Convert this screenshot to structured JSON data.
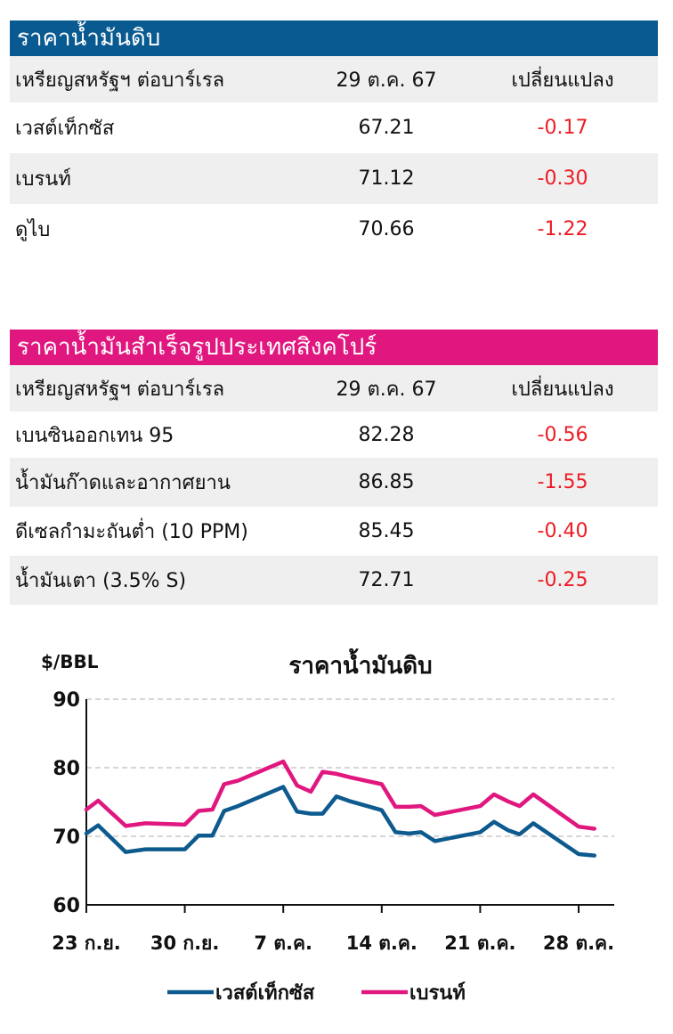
{
  "crude_table": {
    "title": "ราคาน้ำมันดิบ",
    "title_color": "#0a5a92",
    "header": {
      "label": "เหรียญสหรัฐฯ ต่อบาร์เรล",
      "date": "29 ต.ค. 67",
      "change": "เปลี่ยนแปลง"
    },
    "rows": [
      {
        "name": "เวสต์เท็กซัส",
        "price": "67.21",
        "change": "-0.17"
      },
      {
        "name": "เบรนท์",
        "price": "71.12",
        "change": "-0.30"
      },
      {
        "name": "ดูไบ",
        "price": "70.66",
        "change": "-1.22"
      }
    ]
  },
  "refined_table": {
    "title": "ราคาน้ำมันสำเร็จรูปประเทศสิงคโปร์",
    "title_color": "#e0177f",
    "header": {
      "label": "เหรียญสหรัฐฯ ต่อบาร์เรล",
      "date": "29 ต.ค. 67",
      "change": "เปลี่ยนแปลง"
    },
    "rows": [
      {
        "name": "เบนซินออกเทน 95",
        "price": "82.28",
        "change": "-0.56"
      },
      {
        "name": "น้ำมันก๊าดและอากาศยาน",
        "price": "86.85",
        "change": "-1.55"
      },
      {
        "name": "ดีเซลกำมะถันต่ำ (10 PPM)",
        "price": "85.45",
        "change": "-0.40"
      },
      {
        "name": "น้ำมันเตา (3.5% S)",
        "price": "72.71",
        "change": "-0.25"
      }
    ]
  },
  "chart_data": {
    "type": "line",
    "title": "ราคาน้ำมันดิบ",
    "ylabel": "$/BBL",
    "ylim": [
      60,
      90
    ],
    "yticks": [
      60,
      70,
      80,
      90
    ],
    "grid": "horizontal dashed",
    "legend_position": "bottom",
    "x_index_range": [
      0,
      25
    ],
    "xticks": [
      {
        "index": 0,
        "label": "23 ก.ย."
      },
      {
        "index": 5,
        "label": "30 ก.ย."
      },
      {
        "index": 10,
        "label": "7 ต.ค."
      },
      {
        "index": 15,
        "label": "14 ต.ค."
      },
      {
        "index": 20,
        "label": "21 ต.ค."
      },
      {
        "index": 25,
        "label": "28 ต.ค."
      }
    ],
    "series": [
      {
        "name": "เวสต์เท็กซัส",
        "color": "#0d5a8e",
        "points": [
          [
            0,
            70.4
          ],
          [
            0.6,
            71.6
          ],
          [
            2,
            67.7
          ],
          [
            3,
            68.1
          ],
          [
            4,
            68.1
          ],
          [
            5,
            68.1
          ],
          [
            5.7,
            70.1
          ],
          [
            6.4,
            70.1
          ],
          [
            7,
            73.7
          ],
          [
            7.7,
            74.4
          ],
          [
            10,
            77.2
          ],
          [
            10.7,
            73.6
          ],
          [
            11.4,
            73.3
          ],
          [
            12,
            73.3
          ],
          [
            12.7,
            75.8
          ],
          [
            13.4,
            75.1
          ],
          [
            15,
            73.8
          ],
          [
            15.7,
            70.6
          ],
          [
            16.4,
            70.4
          ],
          [
            17,
            70.6
          ],
          [
            17.7,
            69.3
          ],
          [
            20,
            70.6
          ],
          [
            20.7,
            72.1
          ],
          [
            21.4,
            70.9
          ],
          [
            22,
            70.3
          ],
          [
            22.7,
            71.9
          ],
          [
            25,
            67.4
          ],
          [
            25.8,
            67.2
          ]
        ]
      },
      {
        "name": "เบรนท์",
        "color": "#e0177f",
        "points": [
          [
            0,
            73.9
          ],
          [
            0.6,
            75.2
          ],
          [
            2,
            71.5
          ],
          [
            3,
            71.9
          ],
          [
            4,
            71.8
          ],
          [
            5,
            71.7
          ],
          [
            5.7,
            73.7
          ],
          [
            6.4,
            73.9
          ],
          [
            7,
            77.6
          ],
          [
            7.7,
            78.1
          ],
          [
            10,
            80.9
          ],
          [
            10.7,
            77.4
          ],
          [
            11.4,
            76.5
          ],
          [
            12,
            79.4
          ],
          [
            12.7,
            79.1
          ],
          [
            13.4,
            78.6
          ],
          [
            15,
            77.6
          ],
          [
            15.7,
            74.3
          ],
          [
            16.4,
            74.3
          ],
          [
            17,
            74.4
          ],
          [
            17.7,
            73.1
          ],
          [
            20,
            74.4
          ],
          [
            20.7,
            76.1
          ],
          [
            21.4,
            75.1
          ],
          [
            22,
            74.4
          ],
          [
            22.7,
            76.1
          ],
          [
            25,
            71.4
          ],
          [
            25.8,
            71.1
          ]
        ]
      }
    ]
  }
}
